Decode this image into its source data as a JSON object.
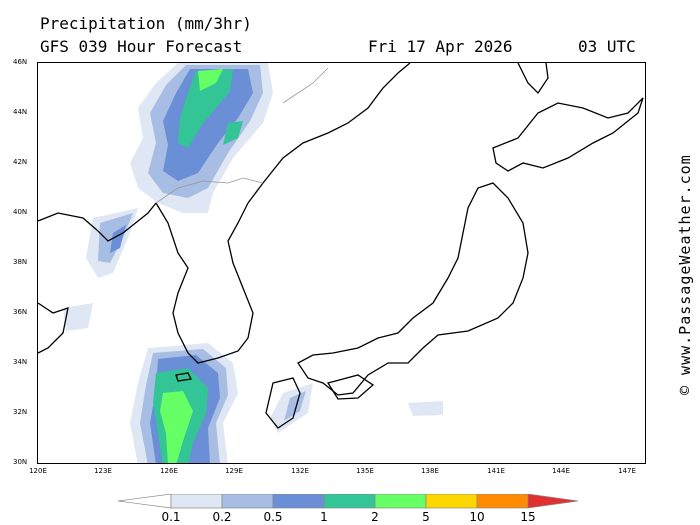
{
  "header": {
    "title": "Precipitation (mm/3hr)",
    "model": "GFS 039 Hour Forecast",
    "date": "Fri 17 Apr 2026",
    "time": "03 UTC"
  },
  "credit": "© www.PassageWeather.com",
  "map": {
    "lat_labels": [
      "46N",
      "44N",
      "42N",
      "40N",
      "38N",
      "36N",
      "34N",
      "32N",
      "30N"
    ],
    "lon_labels": [
      "120E",
      "123E",
      "126E",
      "129E",
      "132E",
      "135E",
      "138E",
      "141E",
      "144E",
      "147E"
    ],
    "lat_range": [
      30,
      46
    ],
    "lon_range": [
      120,
      148
    ]
  },
  "legend": {
    "labels": [
      "0.1",
      "0.2",
      "0.5",
      "1",
      "2",
      "5",
      "10",
      "15"
    ],
    "colors": [
      "#ffffff",
      "#dfe7f5",
      "#a7bde3",
      "#6a8fd6",
      "#33c596",
      "#66ff66",
      "#ffd700",
      "#ff8c00",
      "#e03030"
    ]
  },
  "colors": {
    "land_outline": "#000000",
    "border": "#999999"
  }
}
